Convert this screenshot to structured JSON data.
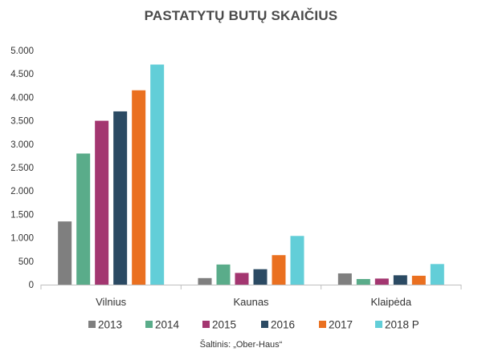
{
  "chart_data": {
    "type": "bar",
    "title": "PASTATYTŲ BUTŲ SKAIČIUS",
    "source": "Šaltinis: „Ober-Haus“",
    "categories": [
      "Vilnius",
      "Kaunas",
      "Klaipėda"
    ],
    "ylim": [
      0,
      5000
    ],
    "yticks": [
      0,
      500,
      1000,
      1500,
      2000,
      2500,
      3000,
      3500,
      4000,
      4500,
      5000
    ],
    "ytick_labels": [
      "0",
      "500",
      "1.000",
      "1.500",
      "2.000",
      "2.500",
      "3.000",
      "3.500",
      "4.000",
      "4.500",
      "5.000"
    ],
    "grid": false,
    "legend_position": "bottom",
    "series": [
      {
        "name": "2013",
        "color": "#7f7f7f",
        "values": [
          1350,
          140,
          240
        ]
      },
      {
        "name": "2014",
        "color": "#5aac8a",
        "values": [
          2800,
          430,
          120
        ]
      },
      {
        "name": "2015",
        "color": "#a33670",
        "values": [
          3500,
          250,
          130
        ]
      },
      {
        "name": "2016",
        "color": "#2b4a63",
        "values": [
          3700,
          330,
          200
        ]
      },
      {
        "name": "2017",
        "color": "#ea7020",
        "values": [
          4150,
          630,
          190
        ]
      },
      {
        "name": "2018 P",
        "color": "#62ced8",
        "values": [
          4700,
          1040,
          440
        ]
      }
    ]
  }
}
